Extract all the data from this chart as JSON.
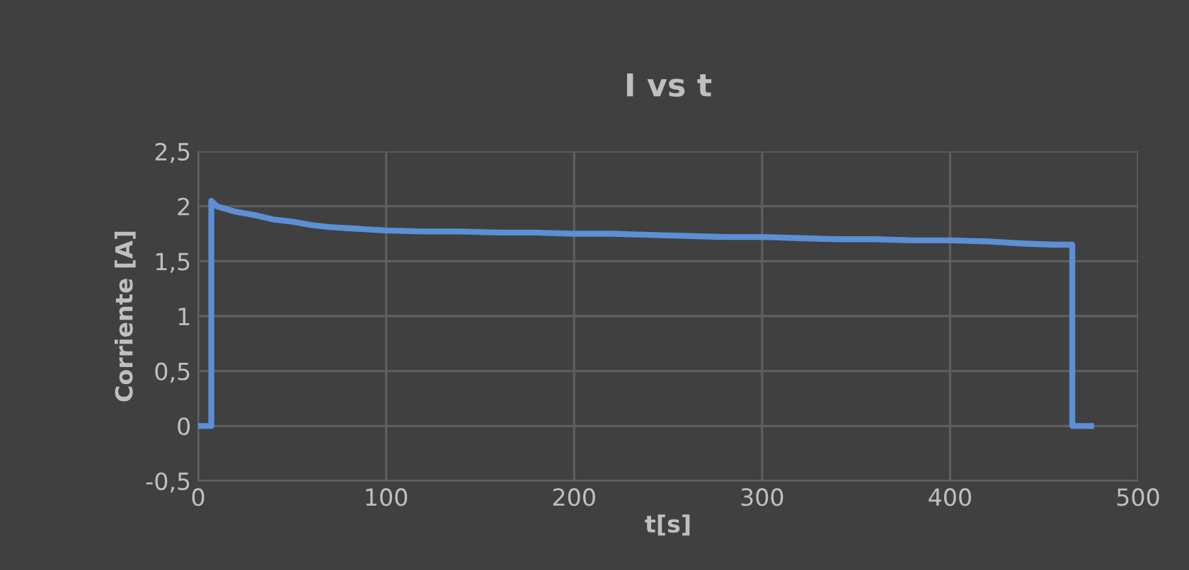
{
  "chart_data": {
    "type": "line",
    "title": "I vs t",
    "xlabel": "t[s]",
    "ylabel": "Corriente [A]",
    "x": [
      1,
      7,
      7,
      10,
      20,
      30,
      40,
      50,
      60,
      70,
      80,
      90,
      100,
      120,
      140,
      160,
      180,
      200,
      220,
      240,
      260,
      280,
      300,
      320,
      340,
      360,
      380,
      400,
      420,
      440,
      455,
      465,
      465,
      475
    ],
    "series": [
      {
        "color": "#5b8fd6",
        "values": [
          0,
          0,
          2.05,
          2.0,
          1.95,
          1.92,
          1.88,
          1.86,
          1.83,
          1.81,
          1.8,
          1.79,
          1.78,
          1.77,
          1.77,
          1.76,
          1.76,
          1.75,
          1.75,
          1.74,
          1.73,
          1.72,
          1.72,
          1.71,
          1.7,
          1.7,
          1.69,
          1.69,
          1.68,
          1.66,
          1.65,
          1.65,
          0,
          0
        ]
      }
    ],
    "xlim": [
      0,
      500
    ],
    "xticks": [
      0,
      100,
      200,
      300,
      400,
      500
    ],
    "ylim": [
      -0.5,
      2.5
    ],
    "yticks": [
      {
        "value": -0.5,
        "label": "-0,5"
      },
      0,
      {
        "value": 0.5,
        "label": "0,5"
      },
      1,
      {
        "value": 1.5,
        "label": "1,5"
      },
      2,
      {
        "value": 2.5,
        "label": "2,5"
      }
    ],
    "grid": true,
    "marker": "none",
    "line_style": "solid"
  }
}
